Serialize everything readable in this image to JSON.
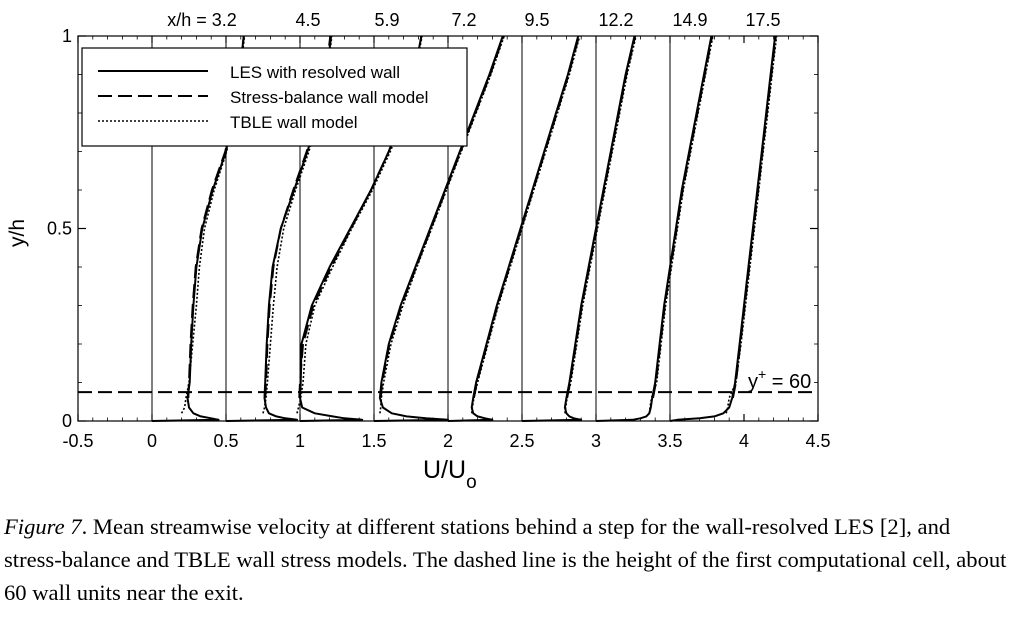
{
  "chart_data": {
    "type": "line",
    "xlabel": "U/U",
    "xlabel_sub": "o",
    "ylabel": "y/h",
    "xlim": [
      -0.5,
      4.5
    ],
    "ylim": [
      0,
      1
    ],
    "xticks": [
      "-0.5",
      "0",
      "0.5",
      "1",
      "1.5",
      "2",
      "2.5",
      "3",
      "3.5",
      "4",
      "4.5"
    ],
    "xtick_values": [
      -0.5,
      0,
      0.5,
      1,
      1.5,
      2,
      2.5,
      3,
      3.5,
      4,
      4.5
    ],
    "yticks": [
      "0",
      "0.5",
      "1"
    ],
    "ytick_values": [
      0,
      0.5,
      1
    ],
    "station_prefix": "x/h = ",
    "stations": [
      "3.2",
      "4.5",
      "5.9",
      "7.2",
      "9.5",
      "12.2",
      "14.9",
      "17.5"
    ],
    "station_offsets": [
      0,
      0.5,
      1,
      1.5,
      2,
      2.5,
      3,
      3.5
    ],
    "legend": [
      {
        "label": "LES with resolved wall",
        "style": "solid"
      },
      {
        "label": "Stress-balance wall model",
        "style": "dashed"
      },
      {
        "label": "TBLE wall model",
        "style": "dotted"
      }
    ],
    "legend_position": "top-left",
    "annotation": {
      "text_main": "y",
      "text_sup": "+",
      "text_tail": " = 60",
      "y": 0.075
    },
    "profile_y": [
      0,
      0.003,
      0.007,
      0.012,
      0.02,
      0.035,
      0.06,
      0.1,
      0.2,
      0.3,
      0.4,
      0.5,
      0.6,
      0.7,
      0.8,
      0.9,
      1.0
    ],
    "series": [
      {
        "station": "3.2",
        "les": [
          0,
          0.45,
          0.4,
          0.33,
          0.28,
          0.25,
          0.24,
          0.255,
          0.265,
          0.28,
          0.3,
          0.34,
          0.41,
          0.5,
          0.55,
          0.59,
          0.62
        ],
        "stress_balance": [
          null,
          null,
          null,
          null,
          null,
          null,
          0.245,
          0.25,
          0.26,
          0.275,
          0.295,
          0.335,
          0.405,
          0.495,
          0.55,
          0.59,
          0.62
        ],
        "tble": [
          null,
          null,
          null,
          null,
          0.2,
          0.22,
          0.23,
          0.25,
          0.275,
          0.3,
          0.32,
          0.355,
          0.42,
          0.505,
          0.555,
          0.595,
          0.625
        ]
      },
      {
        "station": "4.5",
        "les": [
          0.5,
          0.98,
          0.9,
          0.84,
          0.79,
          0.77,
          0.76,
          0.765,
          0.775,
          0.79,
          0.815,
          0.87,
          0.96,
          1.05,
          1.13,
          1.18,
          1.21
        ],
        "stress_balance": [
          null,
          null,
          null,
          null,
          null,
          null,
          0.765,
          0.77,
          0.78,
          0.795,
          0.82,
          0.87,
          0.955,
          1.045,
          1.125,
          1.175,
          1.205
        ],
        "tble": [
          null,
          null,
          null,
          null,
          0.75,
          0.76,
          0.77,
          0.78,
          0.8,
          0.82,
          0.845,
          0.89,
          0.97,
          1.06,
          1.135,
          1.185,
          1.215
        ]
      },
      {
        "station": "5.9",
        "les": [
          1.0,
          1.42,
          1.3,
          1.22,
          1.1,
          1.015,
          1.0,
          1.005,
          1.01,
          1.08,
          1.2,
          1.34,
          1.48,
          1.6,
          1.7,
          1.77,
          1.82
        ],
        "stress_balance": [
          null,
          null,
          null,
          null,
          null,
          null,
          0.995,
          1.0,
          1.02,
          1.09,
          1.21,
          1.345,
          1.48,
          1.6,
          1.7,
          1.77,
          1.82
        ],
        "tble": [
          null,
          null,
          null,
          null,
          0.98,
          0.99,
          1.005,
          1.02,
          1.04,
          1.1,
          1.22,
          1.35,
          1.49,
          1.61,
          1.71,
          1.775,
          1.825
        ]
      },
      {
        "station": "7.2",
        "les": [
          1.5,
          2.0,
          1.85,
          1.72,
          1.62,
          1.56,
          1.54,
          1.55,
          1.6,
          1.68,
          1.78,
          1.88,
          1.98,
          2.08,
          2.18,
          2.28,
          2.37
        ],
        "stress_balance": [
          null,
          null,
          null,
          null,
          null,
          null,
          1.545,
          1.555,
          1.605,
          1.685,
          1.785,
          1.885,
          1.985,
          2.085,
          2.185,
          2.285,
          2.375
        ],
        "tble": [
          null,
          null,
          null,
          null,
          1.54,
          1.545,
          1.55,
          1.565,
          1.615,
          1.695,
          1.79,
          1.89,
          1.99,
          2.09,
          2.19,
          2.29,
          2.38
        ]
      },
      {
        "station": "9.5",
        "les": [
          2.0,
          2.3,
          2.25,
          2.2,
          2.17,
          2.16,
          2.17,
          2.19,
          2.26,
          2.33,
          2.41,
          2.49,
          2.57,
          2.65,
          2.73,
          2.81,
          2.88
        ],
        "stress_balance": [
          null,
          null,
          null,
          null,
          null,
          null,
          2.175,
          2.195,
          2.265,
          2.335,
          2.415,
          2.495,
          2.575,
          2.655,
          2.735,
          2.815,
          2.885
        ],
        "tble": [
          null,
          null,
          null,
          null,
          2.16,
          2.165,
          2.175,
          2.2,
          2.27,
          2.34,
          2.42,
          2.5,
          2.58,
          2.66,
          2.74,
          2.82,
          2.89
        ]
      },
      {
        "station": "12.2",
        "les": [
          2.5,
          2.9,
          2.85,
          2.82,
          2.8,
          2.79,
          2.8,
          2.82,
          2.86,
          2.9,
          2.95,
          3.0,
          3.05,
          3.1,
          3.15,
          3.2,
          3.26
        ],
        "stress_balance": [
          null,
          null,
          null,
          null,
          null,
          null,
          2.805,
          2.825,
          2.865,
          2.905,
          2.955,
          3.005,
          3.055,
          3.105,
          3.155,
          3.205,
          3.265
        ],
        "tble": [
          null,
          null,
          null,
          null,
          2.79,
          2.795,
          2.805,
          2.83,
          2.87,
          2.91,
          2.96,
          3.01,
          3.06,
          3.11,
          3.16,
          3.21,
          3.27
        ]
      },
      {
        "station": "14.9",
        "les": [
          3.0,
          3.25,
          3.3,
          3.34,
          3.36,
          3.37,
          3.38,
          3.4,
          3.43,
          3.46,
          3.5,
          3.54,
          3.58,
          3.63,
          3.68,
          3.73,
          3.78
        ],
        "stress_balance": [
          null,
          null,
          null,
          null,
          null,
          null,
          3.385,
          3.405,
          3.435,
          3.465,
          3.505,
          3.545,
          3.585,
          3.635,
          3.685,
          3.735,
          3.785
        ],
        "tble": [
          null,
          null,
          null,
          null,
          3.36,
          3.365,
          3.375,
          3.41,
          3.44,
          3.47,
          3.51,
          3.55,
          3.59,
          3.64,
          3.69,
          3.74,
          3.79
        ]
      },
      {
        "station": "17.5",
        "les": [
          3.5,
          3.55,
          3.7,
          3.8,
          3.86,
          3.9,
          3.92,
          3.94,
          3.97,
          4.0,
          4.03,
          4.06,
          4.09,
          4.12,
          4.15,
          4.18,
          4.21
        ],
        "stress_balance": [
          null,
          null,
          null,
          null,
          null,
          null,
          3.925,
          3.945,
          3.975,
          4.005,
          4.035,
          4.065,
          4.095,
          4.125,
          4.155,
          4.185,
          4.215
        ],
        "tble": [
          null,
          null,
          null,
          null,
          3.88,
          3.89,
          3.9,
          3.945,
          3.98,
          4.01,
          4.04,
          4.07,
          4.1,
          4.13,
          4.16,
          4.19,
          4.22
        ]
      }
    ]
  },
  "caption": {
    "label": "Figure 7",
    "text": ". Mean streamwise velocity at different stations behind a step for the wall-resolved LES [2], and stress-balance and TBLE wall stress models. The dashed line is the height of the first computational cell, about 60 wall units near the exit."
  }
}
